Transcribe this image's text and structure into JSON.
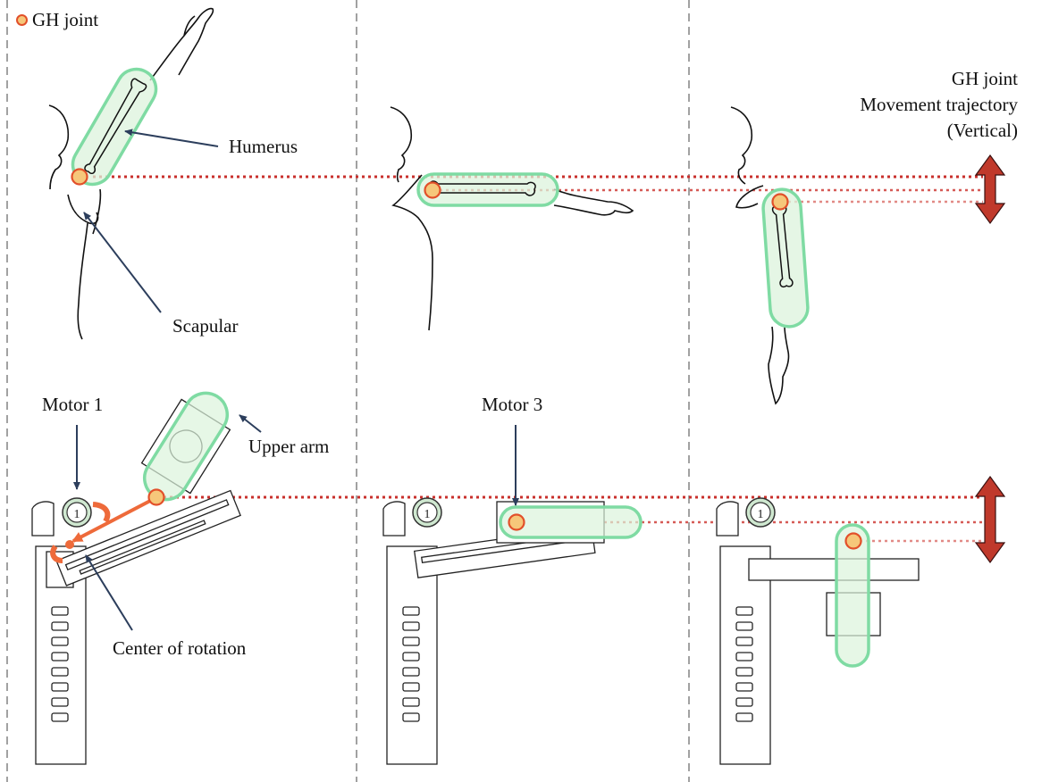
{
  "legend": {
    "label": "GH joint",
    "colors": {
      "fill": "#f6c77a",
      "stroke": "#e2502a"
    }
  },
  "trajectory_title": [
    "GH joint",
    "Movement trajectory",
    "(Vertical)"
  ],
  "labels": {
    "humerus": "Humerus",
    "scapular": "Scapular",
    "motor1": "Motor 1",
    "upper_arm": "Upper arm",
    "motor3": "Motor 3",
    "center_of_rotation": "Center of rotation"
  },
  "motor_badge": "1",
  "colors": {
    "highlight_fill": "#dcf3dc",
    "highlight_stroke": "#7fdba3",
    "dotted_line": "#c9302c",
    "trajectory_arrow": "#c0392b",
    "rotation_arrow": "#ee6a3a",
    "callout_arrow": "#2c3e5c",
    "divider": "#8a8a8a"
  }
}
